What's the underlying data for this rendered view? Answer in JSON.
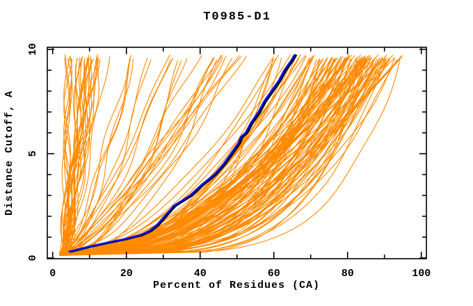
{
  "page": {
    "background": "#ffffff"
  },
  "chart_data": {
    "type": "line",
    "title": "T0985-D1",
    "xlabel": "Percent of Residues (CA)",
    "ylabel": "Distance Cutoff, A",
    "xlim": [
      -1.5,
      101.5
    ],
    "ylim": [
      -0.05,
      10.15
    ],
    "x_major_ticks": [
      0,
      20,
      40,
      60,
      80,
      100
    ],
    "x_minor_ticks": [
      10,
      30,
      50,
      70,
      90
    ],
    "y_major_ticks": [
      0,
      5,
      10
    ],
    "y_minor_ticks": [
      1,
      2,
      3,
      4,
      6,
      7,
      8,
      9
    ],
    "grid": false,
    "legend": null,
    "colors": {
      "model_curves": "#FF8A00",
      "highlight": "#1010DD",
      "highlight_outline": "#000000",
      "frame": "#000000",
      "text": "#000000",
      "background": "#ffffff"
    },
    "highlight_series": {
      "name": "highlighted-model",
      "x": [
        4.5,
        9,
        14,
        19.5,
        24,
        26.5,
        28.5,
        30.5,
        33,
        37.5,
        40.5,
        44,
        46.5,
        48.5,
        50.5,
        51.2,
        52.5,
        54,
        56,
        57.5,
        59.5,
        61.5,
        63,
        65,
        65.8
      ],
      "y": [
        0.3,
        0.5,
        0.7,
        0.9,
        1.1,
        1.3,
        1.6,
        2.0,
        2.5,
        3.0,
        3.5,
        4.0,
        4.5,
        5.0,
        5.5,
        5.8,
        6.0,
        6.5,
        7.0,
        7.5,
        8.0,
        8.5,
        9.0,
        9.5,
        9.75
      ]
    },
    "background_series": {
      "name": "server-model-curves",
      "description": "Approximately 174 orange model curves, monotonically rising from ~(3%,0.2) to a cutoff of ~9.7 A; dense near-vertical bundle at 3-11%, sparse mid-range curves, and a dense band ending between 55% and 95%.",
      "count": 174,
      "seed": 985,
      "cutoff_start_range": [
        0.12,
        0.3
      ],
      "percent_start_range": [
        1.8,
        4.4
      ],
      "cutoff_end_range": [
        9.55,
        9.8
      ],
      "groups": [
        {
          "name": "left-bundle",
          "count": 30,
          "p_final": [
            4,
            13
          ],
          "shape_exp": [
            0.6,
            1.15
          ],
          "p_final_bias": 1.0,
          "waviness": 1.0
        },
        {
          "name": "mid-scatter",
          "count": 26,
          "p_final": [
            13.5,
            54
          ],
          "shape_exp": [
            0.38,
            0.85
          ],
          "p_final_bias": 1.0,
          "waviness": 0.7
        },
        {
          "name": "main-band",
          "count": 118,
          "p_final": [
            55,
            95
          ],
          "shape_exp": [
            0.16,
            0.6
          ],
          "p_final_bias": 0.6,
          "waviness": 0.5
        }
      ]
    }
  }
}
